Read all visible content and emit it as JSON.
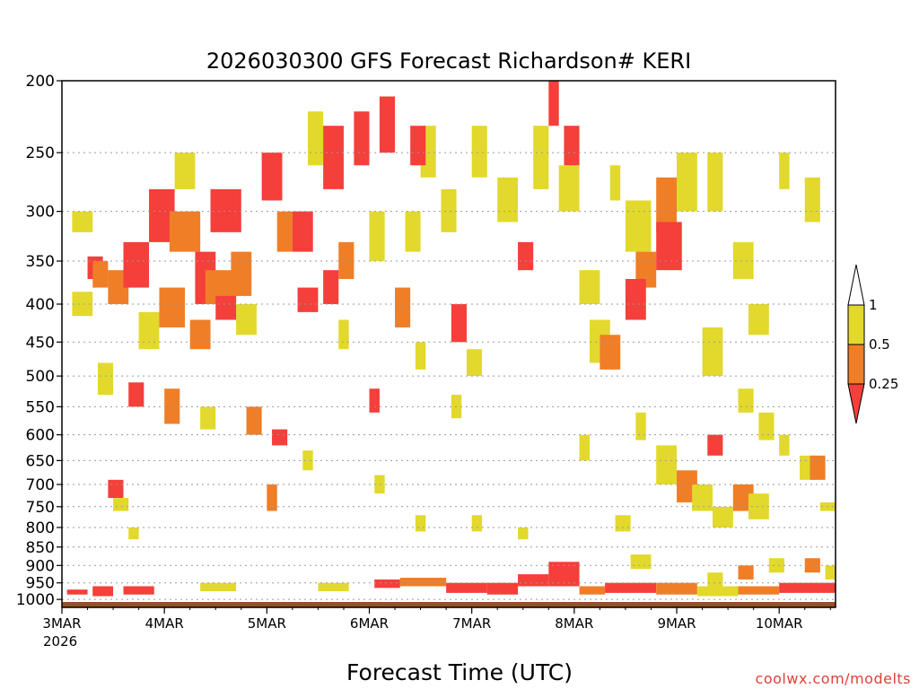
{
  "chart_data": {
    "type": "heatmap",
    "title": "2026030300 GFS Forecast Richardson# KERI",
    "xlabel": "Forecast Time (UTC)",
    "ylabel": "",
    "x_ticks": [
      "3MAR",
      "4MAR",
      "5MAR",
      "6MAR",
      "7MAR",
      "8MAR",
      "9MAR",
      "10MAR"
    ],
    "x_year_label": "2026",
    "x_range_days": [
      0,
      7.55
    ],
    "y_axis_scale": "log-pressure",
    "y_ticks": [
      200,
      250,
      300,
      350,
      400,
      450,
      500,
      550,
      600,
      650,
      700,
      750,
      800,
      850,
      900,
      950,
      1000
    ],
    "ylim": [
      1025,
      200
    ],
    "grid": true,
    "color_scale": {
      "labels": [
        "1",
        "0.5",
        "0.25"
      ],
      "bins": [
        {
          "range": "< 0.25",
          "color": "#f43f3a"
        },
        {
          "range": "0.25 - 0.5",
          "color": "#ef7e27"
        },
        {
          "range": "0.5 - 1",
          "color": "#e2d92c"
        },
        {
          "range": "> 1",
          "color": "#ffffff"
        }
      ]
    },
    "ground_color": "#9a4e26",
    "ground_top_hPa_approx": 1008,
    "cells": [
      [
        0.1,
        0.3,
        385,
        415,
        "y"
      ],
      [
        0.1,
        0.3,
        300,
        320,
        "y"
      ],
      [
        0.25,
        0.4,
        345,
        370,
        "r"
      ],
      [
        0.3,
        0.45,
        350,
        380,
        "o"
      ],
      [
        0.45,
        0.65,
        360,
        400,
        "o"
      ],
      [
        0.6,
        0.85,
        330,
        380,
        "r"
      ],
      [
        0.85,
        1.1,
        280,
        330,
        "r"
      ],
      [
        1.05,
        1.35,
        300,
        340,
        "o"
      ],
      [
        1.3,
        1.5,
        340,
        400,
        "r"
      ],
      [
        1.4,
        1.7,
        360,
        400,
        "o"
      ],
      [
        1.1,
        1.3,
        250,
        280,
        "y"
      ],
      [
        1.45,
        1.75,
        280,
        320,
        "r"
      ],
      [
        1.65,
        1.85,
        340,
        390,
        "o"
      ],
      [
        1.7,
        1.9,
        400,
        440,
        "y"
      ],
      [
        1.95,
        2.15,
        250,
        290,
        "r"
      ],
      [
        2.1,
        2.25,
        300,
        340,
        "o"
      ],
      [
        2.25,
        2.45,
        300,
        340,
        "r"
      ],
      [
        2.4,
        2.55,
        220,
        260,
        "y"
      ],
      [
        2.55,
        2.75,
        230,
        280,
        "r"
      ],
      [
        2.7,
        2.85,
        330,
        370,
        "o"
      ],
      [
        2.85,
        3.0,
        220,
        260,
        "r"
      ],
      [
        3.0,
        3.15,
        300,
        350,
        "y"
      ],
      [
        3.1,
        3.25,
        210,
        250,
        "r"
      ],
      [
        0.75,
        0.95,
        410,
        460,
        "y"
      ],
      [
        0.95,
        1.2,
        380,
        430,
        "o"
      ],
      [
        1.25,
        1.45,
        420,
        460,
        "o"
      ],
      [
        1.5,
        1.7,
        390,
        420,
        "r"
      ],
      [
        2.3,
        2.5,
        380,
        410,
        "r"
      ],
      [
        2.55,
        2.7,
        360,
        400,
        "r"
      ],
      [
        2.7,
        2.8,
        420,
        460,
        "y"
      ],
      [
        3.25,
        3.4,
        380,
        430,
        "o"
      ],
      [
        3.5,
        3.65,
        230,
        270,
        "y"
      ],
      [
        3.7,
        3.85,
        280,
        320,
        "y"
      ],
      [
        3.35,
        3.5,
        300,
        340,
        "y"
      ],
      [
        3.4,
        3.55,
        230,
        260,
        "r"
      ],
      [
        4.0,
        4.15,
        230,
        270,
        "y"
      ],
      [
        3.8,
        3.95,
        400,
        450,
        "r"
      ],
      [
        3.95,
        4.1,
        460,
        500,
        "y"
      ],
      [
        4.25,
        4.45,
        270,
        310,
        "y"
      ],
      [
        4.45,
        4.6,
        330,
        360,
        "r"
      ],
      [
        4.6,
        4.75,
        230,
        280,
        "y"
      ],
      [
        4.75,
        4.85,
        200,
        230,
        "r"
      ],
      [
        4.85,
        5.05,
        260,
        300,
        "y"
      ],
      [
        5.05,
        5.25,
        360,
        400,
        "y"
      ],
      [
        4.9,
        5.05,
        230,
        260,
        "r"
      ],
      [
        5.15,
        5.35,
        420,
        480,
        "y"
      ],
      [
        5.25,
        5.45,
        440,
        490,
        "o"
      ],
      [
        5.35,
        5.45,
        260,
        290,
        "y"
      ],
      [
        5.5,
        5.75,
        290,
        340,
        "y"
      ],
      [
        5.6,
        5.8,
        340,
        380,
        "o"
      ],
      [
        5.5,
        5.7,
        370,
        420,
        "r"
      ],
      [
        5.8,
        6.0,
        270,
        320,
        "o"
      ],
      [
        5.8,
        6.05,
        310,
        360,
        "r"
      ],
      [
        6.0,
        6.2,
        250,
        300,
        "y"
      ],
      [
        6.3,
        6.45,
        250,
        300,
        "y"
      ],
      [
        6.25,
        6.45,
        430,
        500,
        "y"
      ],
      [
        6.55,
        6.75,
        330,
        370,
        "y"
      ],
      [
        6.7,
        6.9,
        400,
        440,
        "y"
      ],
      [
        7.0,
        7.1,
        250,
        280,
        "y"
      ],
      [
        7.25,
        7.4,
        270,
        310,
        "y"
      ],
      [
        0.35,
        0.5,
        480,
        530,
        "y"
      ],
      [
        0.65,
        0.8,
        510,
        550,
        "r"
      ],
      [
        1.0,
        1.15,
        520,
        580,
        "o"
      ],
      [
        1.35,
        1.5,
        550,
        590,
        "y"
      ],
      [
        1.8,
        1.95,
        550,
        600,
        "o"
      ],
      [
        2.05,
        2.2,
        590,
        620,
        "r"
      ],
      [
        2.35,
        2.45,
        630,
        670,
        "y"
      ],
      [
        3.0,
        3.1,
        520,
        560,
        "r"
      ],
      [
        3.45,
        3.55,
        450,
        490,
        "y"
      ],
      [
        3.8,
        3.9,
        530,
        570,
        "y"
      ],
      [
        5.6,
        5.7,
        560,
        610,
        "y"
      ],
      [
        5.8,
        6.0,
        620,
        700,
        "y"
      ],
      [
        6.0,
        6.2,
        670,
        740,
        "o"
      ],
      [
        6.15,
        6.35,
        700,
        760,
        "y"
      ],
      [
        6.3,
        6.45,
        600,
        640,
        "r"
      ],
      [
        6.35,
        6.55,
        750,
        800,
        "y"
      ],
      [
        6.55,
        6.75,
        700,
        760,
        "o"
      ],
      [
        6.7,
        6.9,
        720,
        780,
        "y"
      ],
      [
        6.6,
        6.75,
        520,
        560,
        "y"
      ],
      [
        6.8,
        6.95,
        560,
        610,
        "y"
      ],
      [
        7.0,
        7.1,
        600,
        640,
        "y"
      ],
      [
        7.2,
        7.35,
        640,
        690,
        "y"
      ],
      [
        7.3,
        7.45,
        640,
        690,
        "o"
      ],
      [
        7.4,
        7.55,
        740,
        760,
        "y"
      ],
      [
        0.45,
        0.6,
        690,
        730,
        "r"
      ],
      [
        0.5,
        0.65,
        730,
        760,
        "y"
      ],
      [
        0.65,
        0.75,
        800,
        830,
        "y"
      ],
      [
        2.0,
        2.1,
        700,
        760,
        "o"
      ],
      [
        3.05,
        3.15,
        680,
        720,
        "y"
      ],
      [
        3.45,
        3.55,
        770,
        810,
        "y"
      ],
      [
        4.0,
        4.1,
        770,
        810,
        "y"
      ],
      [
        4.45,
        4.55,
        800,
        830,
        "y"
      ],
      [
        5.05,
        5.15,
        600,
        650,
        "y"
      ],
      [
        5.4,
        5.55,
        770,
        810,
        "y"
      ],
      [
        6.3,
        6.45,
        920,
        960,
        "y"
      ],
      [
        6.6,
        6.75,
        900,
        940,
        "o"
      ],
      [
        6.9,
        7.05,
        880,
        920,
        "y"
      ],
      [
        7.25,
        7.4,
        880,
        920,
        "o"
      ],
      [
        7.45,
        7.55,
        900,
        940,
        "y"
      ],
      [
        5.55,
        5.75,
        870,
        910,
        "y"
      ]
    ],
    "surface_bands": [
      [
        0.05,
        0.25,
        970,
        985,
        "r"
      ],
      [
        0.3,
        0.5,
        960,
        990,
        "r"
      ],
      [
        0.6,
        0.9,
        960,
        985,
        "r"
      ],
      [
        1.35,
        1.7,
        950,
        975,
        "y"
      ],
      [
        2.5,
        2.8,
        950,
        975,
        "y"
      ],
      [
        3.05,
        3.3,
        940,
        965,
        "r"
      ],
      [
        3.3,
        3.75,
        935,
        960,
        "o"
      ],
      [
        3.75,
        4.15,
        950,
        980,
        "r"
      ],
      [
        4.15,
        4.45,
        950,
        985,
        "r"
      ],
      [
        4.45,
        4.75,
        925,
        960,
        "r"
      ],
      [
        4.75,
        5.05,
        890,
        960,
        "r"
      ],
      [
        5.05,
        5.3,
        960,
        985,
        "o"
      ],
      [
        5.3,
        5.8,
        950,
        980,
        "r"
      ],
      [
        5.8,
        6.2,
        950,
        985,
        "o"
      ],
      [
        6.2,
        6.6,
        960,
        990,
        "y"
      ],
      [
        6.6,
        7.0,
        960,
        985,
        "o"
      ],
      [
        7.0,
        7.55,
        950,
        980,
        "r"
      ]
    ]
  },
  "watermark": "coolwx.com/modelts"
}
